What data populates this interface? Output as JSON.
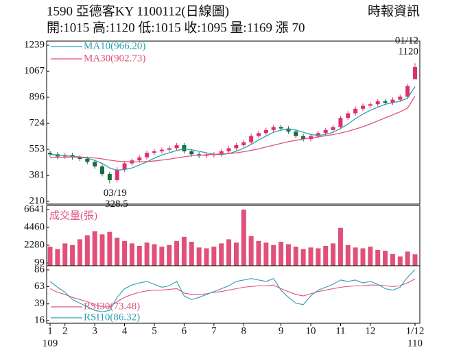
{
  "header": {
    "title": "1590  亞德客KY 1100112(日線圖)",
    "source": "時報資訊",
    "quote": "開:1015 高:1120 低:1015 收:1095 量:1169 漲 70"
  },
  "chart_data": [
    {
      "type": "candlestick",
      "categories": [
        "1",
        null,
        "2",
        null,
        null,
        null,
        "3",
        null,
        null,
        null,
        "4",
        null,
        null,
        null,
        "5",
        null,
        null,
        null,
        "6",
        null,
        null,
        null,
        "7",
        null,
        null,
        null,
        "8",
        null,
        null,
        null,
        null,
        "9",
        null,
        null,
        null,
        "10",
        null,
        null,
        null,
        "11",
        null,
        null,
        null,
        "12",
        null,
        null,
        null,
        null,
        null,
        "1/12"
      ],
      "year_start": "109",
      "year_end": "110",
      "open": [
        530,
        520,
        505,
        515,
        500,
        490,
        470,
        440,
        390,
        350,
        420,
        460,
        480,
        500,
        530,
        540,
        550,
        560,
        580,
        540,
        520,
        510,
        515,
        520,
        540,
        560,
        580,
        600,
        640,
        660,
        680,
        700,
        690,
        670,
        640,
        620,
        640,
        660,
        680,
        700,
        760,
        790,
        820,
        840,
        850,
        870,
        860,
        880,
        900,
        1015
      ],
      "high": [
        545,
        535,
        530,
        530,
        515,
        505,
        485,
        455,
        405,
        435,
        475,
        495,
        515,
        545,
        555,
        565,
        575,
        595,
        595,
        555,
        535,
        530,
        535,
        555,
        575,
        595,
        615,
        655,
        675,
        695,
        715,
        715,
        705,
        685,
        655,
        655,
        675,
        695,
        715,
        775,
        805,
        835,
        855,
        865,
        885,
        885,
        895,
        915,
        985,
        1120
      ],
      "low": [
        505,
        490,
        490,
        485,
        475,
        455,
        425,
        375,
        328.5,
        335,
        405,
        445,
        465,
        485,
        515,
        525,
        535,
        545,
        525,
        505,
        495,
        495,
        500,
        505,
        525,
        545,
        565,
        585,
        625,
        645,
        665,
        675,
        655,
        625,
        605,
        605,
        625,
        645,
        665,
        685,
        745,
        775,
        805,
        825,
        835,
        845,
        845,
        865,
        885,
        1015
      ],
      "close": [
        520,
        505,
        515,
        500,
        490,
        470,
        440,
        390,
        350,
        420,
        460,
        480,
        500,
        530,
        540,
        550,
        560,
        580,
        540,
        520,
        510,
        515,
        520,
        540,
        560,
        580,
        600,
        640,
        660,
        680,
        700,
        690,
        670,
        640,
        620,
        640,
        660,
        680,
        700,
        760,
        790,
        820,
        840,
        850,
        870,
        860,
        880,
        900,
        970,
        1095
      ],
      "up_color": "#e0306a",
      "down_color": "#1a6b3a",
      "series": [
        {
          "name": "MA10(966.20)",
          "color": "#2a9fb0",
          "values": [
            520,
            515,
            510,
            508,
            502,
            495,
            480,
            460,
            430,
            415,
            420,
            430,
            450,
            470,
            495,
            515,
            530,
            545,
            555,
            550,
            540,
            530,
            520,
            518,
            525,
            540,
            560,
            585,
            615,
            640,
            665,
            680,
            685,
            680,
            665,
            650,
            645,
            650,
            665,
            690,
            720,
            755,
            785,
            810,
            830,
            850,
            860,
            870,
            890,
            966.2
          ]
        },
        {
          "name": "MA30(902.73)",
          "color": "#e0507a",
          "values": [
            500,
            500,
            501,
            502,
            502,
            500,
            496,
            490,
            482,
            475,
            472,
            470,
            470,
            472,
            476,
            482,
            488,
            496,
            504,
            510,
            514,
            517,
            520,
            522,
            525,
            530,
            537,
            546,
            556,
            568,
            580,
            592,
            603,
            612,
            620,
            628,
            635,
            642,
            650,
            660,
            672,
            686,
            702,
            720,
            740,
            760,
            780,
            800,
            825,
            902.73
          ]
        }
      ],
      "annotations": [
        "01/12",
        "1120",
        "03/19",
        "328.5"
      ],
      "ylim": [
        210,
        1239
      ],
      "yticks": [
        210,
        381,
        553,
        724,
        896,
        1067,
        1239
      ]
    },
    {
      "type": "bar",
      "title": "成交量(張)",
      "color": "#e0507a",
      "values": [
        2100,
        1800,
        2500,
        2300,
        3000,
        3500,
        4000,
        3600,
        3900,
        3200,
        2800,
        2500,
        2200,
        2600,
        2400,
        2100,
        2300,
        2800,
        3300,
        2700,
        2000,
        1900,
        2100,
        2500,
        3000,
        2600,
        6641,
        3400,
        2800,
        2600,
        2300,
        2700,
        2400,
        2100,
        1800,
        2000,
        1900,
        2200,
        2500,
        4400,
        2300,
        2000,
        1900,
        2100,
        1700,
        1600,
        1200,
        900,
        1500,
        1169
      ],
      "ylim": [
        99,
        6641
      ],
      "yticks": [
        99,
        2280,
        4460,
        6641
      ]
    },
    {
      "type": "line",
      "series": [
        {
          "name": "RSI30(73.48)",
          "color": "#e0507a",
          "values": [
            60,
            55,
            52,
            48,
            45,
            42,
            38,
            35,
            35,
            42,
            48,
            52,
            55,
            57,
            58,
            58,
            59,
            60,
            54,
            52,
            52,
            53,
            55,
            56,
            58,
            60,
            62,
            63,
            64,
            64,
            65,
            60,
            56,
            52,
            50,
            53,
            56,
            58,
            60,
            62,
            63,
            64,
            64,
            65,
            65,
            64,
            63,
            64,
            68,
            73.48
          ]
        },
        {
          "name": "RSI10(86.32)",
          "color": "#2a9fb0",
          "values": [
            70,
            62,
            55,
            45,
            40,
            35,
            30,
            28,
            30,
            48,
            60,
            65,
            68,
            70,
            66,
            62,
            64,
            70,
            50,
            45,
            48,
            52,
            56,
            60,
            64,
            70,
            72,
            74,
            72,
            70,
            74,
            58,
            48,
            40,
            38,
            50,
            58,
            62,
            66,
            72,
            70,
            72,
            68,
            70,
            66,
            60,
            58,
            62,
            76,
            86.32
          ]
        }
      ],
      "ylim": [
        16,
        86
      ],
      "yticks": [
        16,
        39,
        63,
        86
      ]
    }
  ]
}
